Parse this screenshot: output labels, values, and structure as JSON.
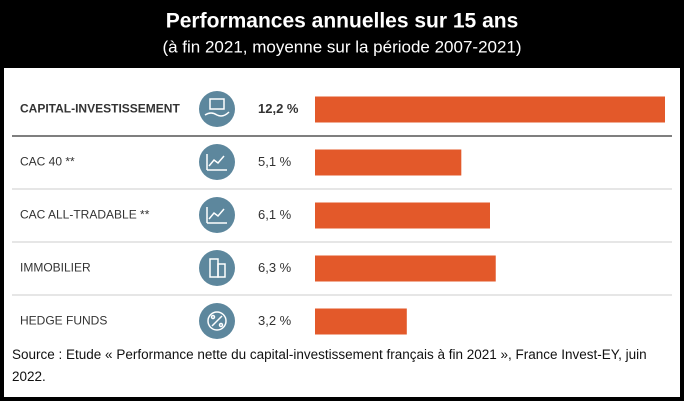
{
  "chart_data": {
    "type": "bar",
    "title": "Performances annuelles sur 15 ans",
    "subtitle": "(à fin 2021, moyenne sur la période 2007-2021)",
    "categories": [
      "CAPITAL-INVESTISSEMENT",
      "CAC 40 **",
      "CAC ALL-TRADABLE **",
      "IMMOBILIER",
      "HEDGE FUNDS"
    ],
    "values": [
      12.2,
      5.1,
      6.1,
      6.3,
      3.2
    ],
    "value_labels": [
      "12,2 %",
      "5,1 %",
      "6,1 %",
      "6,3 %",
      "3,2 %"
    ],
    "color": "#e3592a",
    "source": "Source : Etude « Performance nette du capital-investissement français à fin 2021 », France Invest-EY, juin 2022."
  }
}
